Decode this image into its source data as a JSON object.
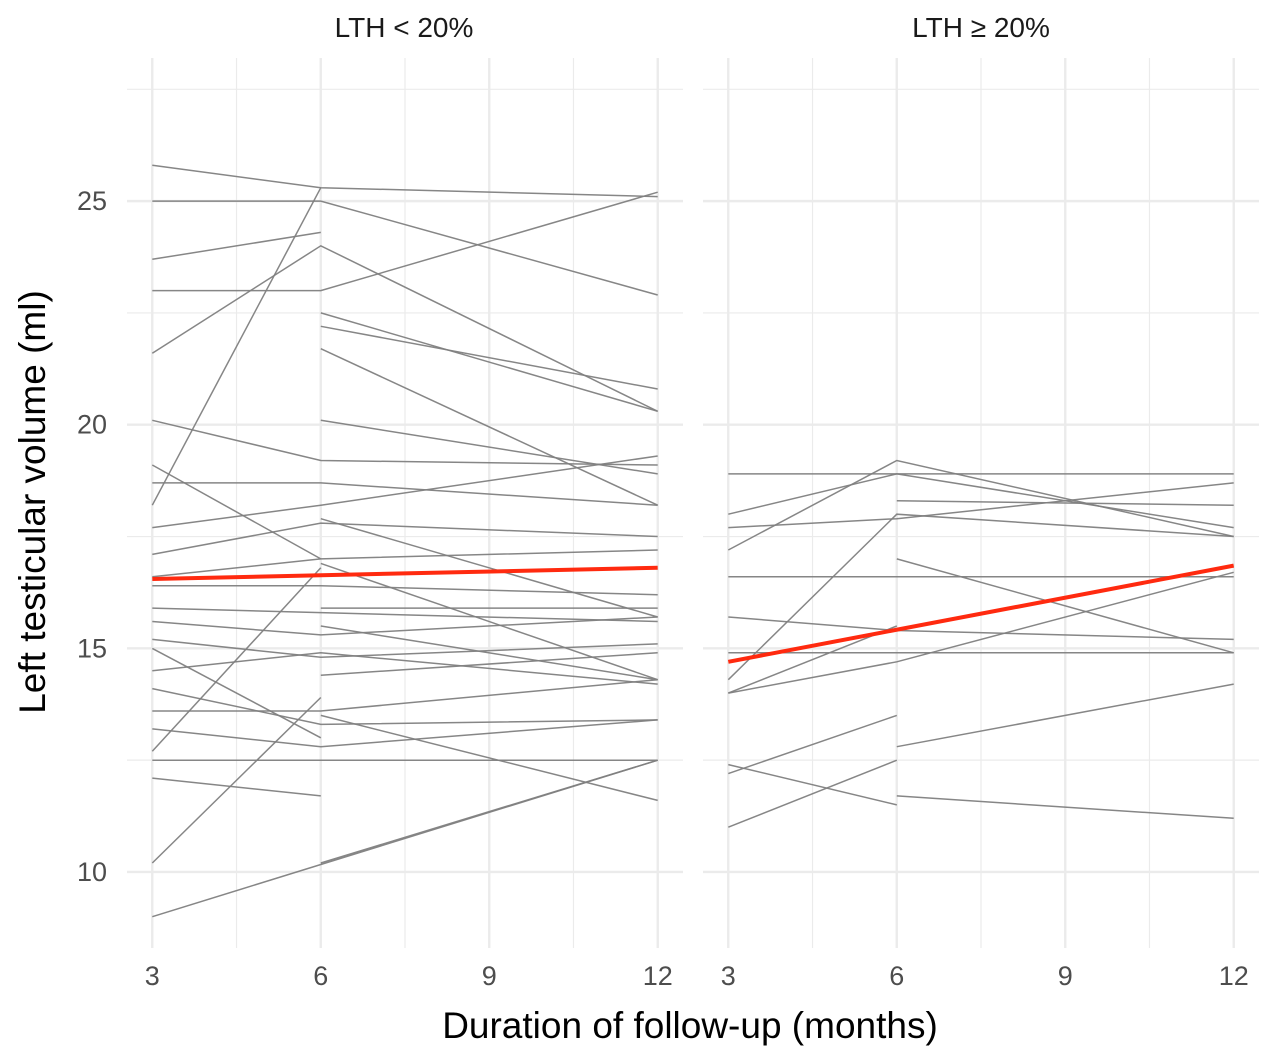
{
  "chart_data": {
    "type": "line",
    "xlabel": "Duration of follow-up (months)",
    "ylabel": "Left testicular volume (ml)",
    "xlim": [
      3,
      12
    ],
    "ylim": [
      8.3,
      28.2
    ],
    "x_ticks": [
      3,
      6,
      9,
      12
    ],
    "x_tick_labels": [
      "3",
      "6",
      "9",
      "12"
    ],
    "y_ticks": [
      10,
      15,
      20,
      25
    ],
    "y_tick_labels": [
      "10",
      "15",
      "20",
      "25"
    ],
    "grid": true,
    "legend": "none",
    "colors": {
      "subject_line": "#7f7f7f",
      "trend_line": "#ff2a0f",
      "grid": "#ebebeb"
    },
    "panels": [
      {
        "title": "LTH < 20%",
        "trend": {
          "name": "",
          "x": [
            3,
            12
          ],
          "y": [
            16.55,
            16.8
          ]
        },
        "subjects": [
          {
            "x": [
              3,
              6,
              12
            ],
            "y": [
              25.8,
              25.3,
              25.1
            ]
          },
          {
            "x": [
              3,
              6,
              12
            ],
            "y": [
              25.0,
              25.0,
              22.9
            ]
          },
          {
            "x": [
              3,
              6
            ],
            "y": [
              23.7,
              24.3
            ]
          },
          {
            "x": [
              3,
              6,
              12
            ],
            "y": [
              23.0,
              23.0,
              25.2
            ]
          },
          {
            "x": [
              3,
              6,
              12
            ],
            "y": [
              21.6,
              24.0,
              20.3
            ]
          },
          {
            "x": [
              3,
              6,
              12
            ],
            "y": [
              20.1,
              19.2,
              19.1
            ]
          },
          {
            "x": [
              3,
              6
            ],
            "y": [
              18.2,
              25.3
            ]
          },
          {
            "x": [
              3,
              6,
              12
            ],
            "y": [
              18.7,
              18.7,
              18.2
            ]
          },
          {
            "x": [
              3,
              6,
              12
            ],
            "y": [
              17.7,
              18.2,
              19.3
            ]
          },
          {
            "x": [
              3,
              6,
              12
            ],
            "y": [
              17.1,
              17.8,
              17.5
            ]
          },
          {
            "x": [
              3,
              6,
              12
            ],
            "y": [
              16.6,
              17.0,
              17.2
            ]
          },
          {
            "x": [
              3,
              6,
              12
            ],
            "y": [
              16.4,
              16.4,
              16.2
            ]
          },
          {
            "x": [
              3,
              6,
              12
            ],
            "y": [
              15.9,
              15.8,
              15.6
            ]
          },
          {
            "x": [
              3,
              6,
              12
            ],
            "y": [
              15.6,
              15.3,
              15.7
            ]
          },
          {
            "x": [
              3,
              6,
              12
            ],
            "y": [
              15.2,
              14.8,
              15.1
            ]
          },
          {
            "x": [
              3,
              6,
              12
            ],
            "y": [
              14.5,
              14.9,
              14.2
            ]
          },
          {
            "x": [
              3,
              6,
              12
            ],
            "y": [
              14.1,
              13.3,
              13.4
            ]
          },
          {
            "x": [
              3,
              6,
              12
            ],
            "y": [
              13.6,
              13.6,
              14.3
            ]
          },
          {
            "x": [
              3,
              6,
              12
            ],
            "y": [
              13.2,
              12.8,
              13.4
            ]
          },
          {
            "x": [
              3,
              6,
              12
            ],
            "y": [
              12.5,
              12.5,
              12.5
            ]
          },
          {
            "x": [
              3,
              6
            ],
            "y": [
              12.1,
              11.7
            ]
          },
          {
            "x": [
              3,
              6
            ],
            "y": [
              10.2,
              13.9
            ]
          },
          {
            "x": [
              3,
              12
            ],
            "y": [
              9.0,
              12.5
            ]
          },
          {
            "x": [
              3,
              6
            ],
            "y": [
              12.7,
              16.8
            ]
          },
          {
            "x": [
              3,
              6
            ],
            "y": [
              15.0,
              13.0
            ]
          },
          {
            "x": [
              3,
              6
            ],
            "y": [
              19.1,
              17.0
            ]
          },
          {
            "x": [
              6,
              12
            ],
            "y": [
              22.5,
              20.3
            ]
          },
          {
            "x": [
              6,
              12
            ],
            "y": [
              22.2,
              20.8
            ]
          },
          {
            "x": [
              6,
              12
            ],
            "y": [
              21.7,
              18.2
            ]
          },
          {
            "x": [
              6,
              12
            ],
            "y": [
              20.1,
              18.9
            ]
          },
          {
            "x": [
              6,
              12
            ],
            "y": [
              17.9,
              15.7
            ]
          },
          {
            "x": [
              6,
              12
            ],
            "y": [
              16.9,
              14.3
            ]
          },
          {
            "x": [
              6,
              12
            ],
            "y": [
              15.9,
              15.9
            ]
          },
          {
            "x": [
              6,
              12
            ],
            "y": [
              15.5,
              14.3
            ]
          },
          {
            "x": [
              6,
              12
            ],
            "y": [
              14.4,
              14.9
            ]
          },
          {
            "x": [
              6,
              12
            ],
            "y": [
              13.5,
              11.6
            ]
          },
          {
            "x": [
              6,
              12
            ],
            "y": [
              10.2,
              12.5
            ]
          }
        ]
      },
      {
        "title": "LTH ≥ 20%",
        "trend": {
          "name": "",
          "x": [
            3,
            12
          ],
          "y": [
            14.7,
            16.85
          ]
        },
        "subjects": [
          {
            "x": [
              3,
              6,
              12
            ],
            "y": [
              18.9,
              18.9,
              18.9
            ]
          },
          {
            "x": [
              3,
              6,
              12
            ],
            "y": [
              18.0,
              18.9,
              17.7
            ]
          },
          {
            "x": [
              3,
              6,
              12
            ],
            "y": [
              17.7,
              17.9,
              18.7
            ]
          },
          {
            "x": [
              3,
              6,
              12
            ],
            "y": [
              17.2,
              19.2,
              17.5
            ]
          },
          {
            "x": [
              3,
              6,
              12
            ],
            "y": [
              16.6,
              16.6,
              16.6
            ]
          },
          {
            "x": [
              3,
              6,
              12
            ],
            "y": [
              15.7,
              15.4,
              15.2
            ]
          },
          {
            "x": [
              3,
              6,
              12
            ],
            "y": [
              14.9,
              14.9,
              14.9
            ]
          },
          {
            "x": [
              3,
              6,
              12
            ],
            "y": [
              14.3,
              18.0,
              17.5
            ]
          },
          {
            "x": [
              3,
              6,
              12
            ],
            "y": [
              14.0,
              14.7,
              16.7
            ]
          },
          {
            "x": [
              3,
              6
            ],
            "y": [
              14.0,
              15.5
            ]
          },
          {
            "x": [
              3,
              6
            ],
            "y": [
              12.4,
              11.5
            ]
          },
          {
            "x": [
              3,
              6
            ],
            "y": [
              12.2,
              13.5
            ]
          },
          {
            "x": [
              3,
              6
            ],
            "y": [
              11.0,
              12.5
            ]
          },
          {
            "x": [
              6,
              12
            ],
            "y": [
              17.0,
              14.9
            ]
          },
          {
            "x": [
              6,
              12
            ],
            "y": [
              18.3,
              18.2
            ]
          },
          {
            "x": [
              6,
              12
            ],
            "y": [
              12.8,
              14.2
            ]
          },
          {
            "x": [
              6,
              12
            ],
            "y": [
              11.7,
              11.2
            ]
          }
        ]
      }
    ]
  }
}
